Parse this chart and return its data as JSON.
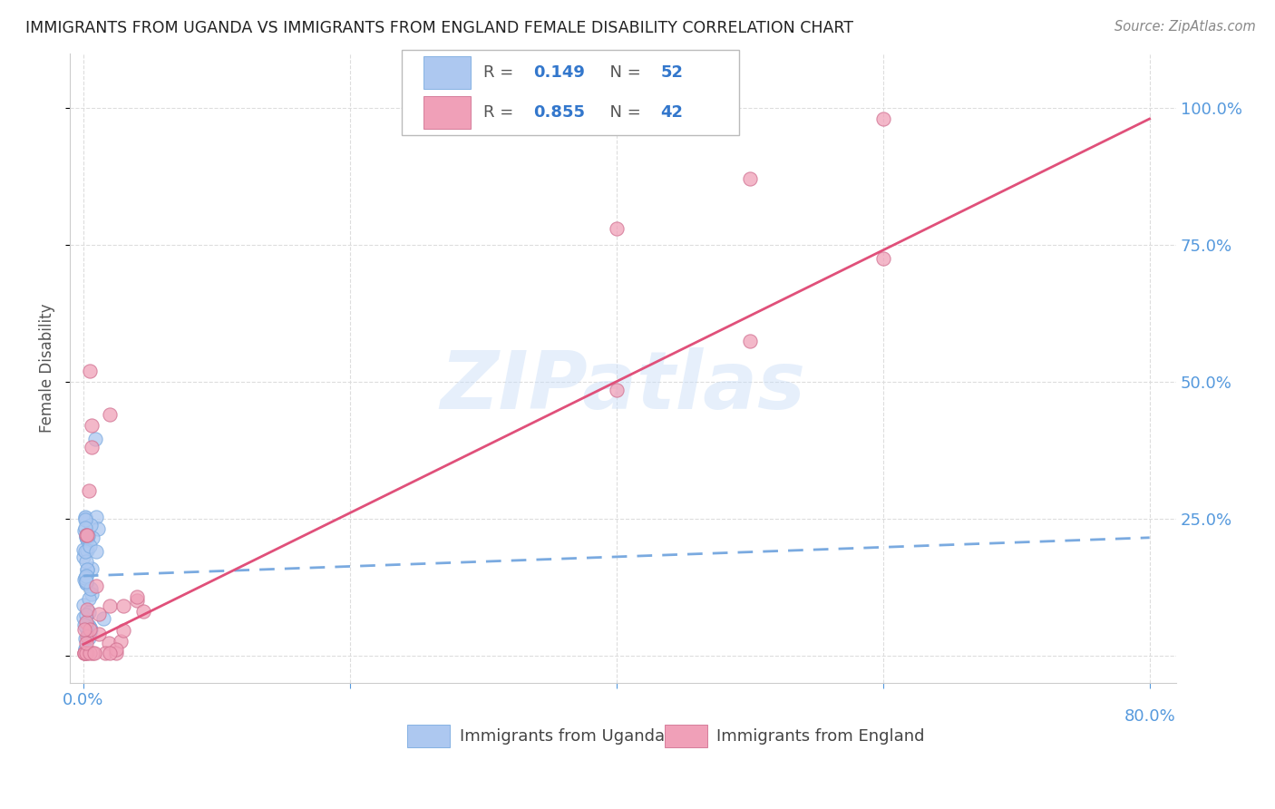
{
  "title": "IMMIGRANTS FROM UGANDA VS IMMIGRANTS FROM ENGLAND FEMALE DISABILITY CORRELATION CHART",
  "source": "Source: ZipAtlas.com",
  "ylabel": "Female Disability",
  "watermark": "ZIPatlas",
  "uganda_color": "#adc8f0",
  "uganda_edge_color": "#7aaae0",
  "england_color": "#f0a0b8",
  "england_edge_color": "#d07090",
  "uganda_line_color": "#7aaae0",
  "england_line_color": "#e0507a",
  "axis_color": "#5599dd",
  "grid_color": "#dddddd",
  "title_color": "#222222",
  "title_fontsize": 12.5,
  "source_color": "#888888",
  "ylabel_color": "#555555",
  "background_color": "#ffffff",
  "uganda_R": 0.149,
  "uganda_N": 52,
  "england_R": 0.855,
  "england_N": 42,
  "uganda_line_x0": 0.0,
  "uganda_line_y0": 0.145,
  "uganda_line_x1": 0.8,
  "uganda_line_y1": 0.215,
  "england_line_x0": 0.0,
  "england_line_y0": 0.02,
  "england_line_x1": 0.8,
  "england_line_y1": 0.98,
  "xlim_min": -0.01,
  "xlim_max": 0.82,
  "ylim_min": -0.05,
  "ylim_max": 1.1,
  "yticks": [
    0.0,
    0.25,
    0.5,
    0.75,
    1.0
  ],
  "ytick_labels": [
    "",
    "25.0%",
    "50.0%",
    "75.0%",
    "100.0%"
  ],
  "xtick_left_label": "0.0%",
  "xtick_right_label": "80.0%",
  "legend_uganda_text_grey": "R = ",
  "legend_uganda_R_val": "0.149",
  "legend_uganda_N_text": "  N = ",
  "legend_uganda_N_val": "52",
  "legend_england_text_grey": "R = ",
  "legend_england_R_val": "0.855",
  "legend_england_N_text": "  N = ",
  "legend_england_N_val": "42",
  "legend_val_color": "#3377cc",
  "legend_text_color": "#555555",
  "bottom_legend_uganda": "Immigrants from Uganda",
  "bottom_legend_england": "Immigrants from England",
  "marker_size": 120
}
